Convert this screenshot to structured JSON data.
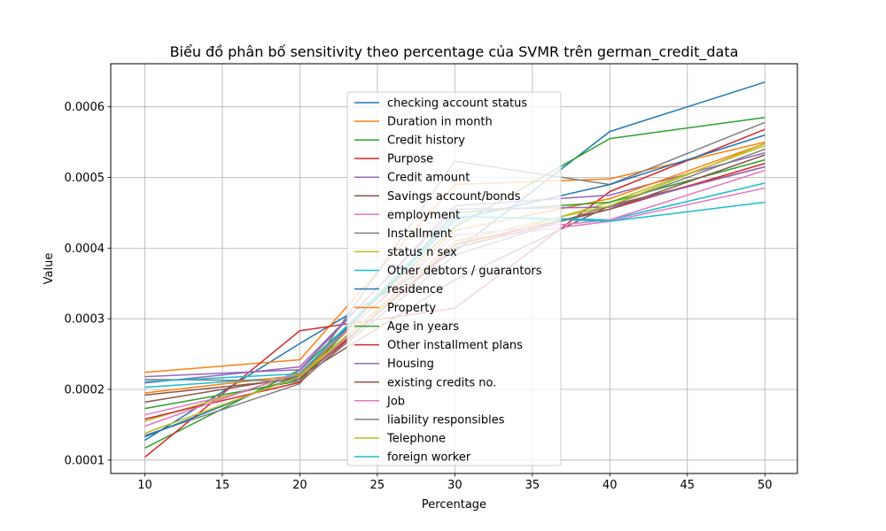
{
  "chart_data": {
    "type": "line",
    "title": "Biểu đồ phân bố sensitivity theo percentage của SVMR trên german_credit_data",
    "xlabel": "Percentage",
    "ylabel": "Value",
    "x": [
      10,
      20,
      30,
      40,
      50
    ],
    "x_ticks": [
      "10",
      "15",
      "20",
      "25",
      "30",
      "35",
      "40",
      "45",
      "50"
    ],
    "y_ticks": [
      "0.0001",
      "0.0002",
      "0.0003",
      "0.0004",
      "0.0005",
      "0.0006"
    ],
    "xlim": [
      7.8,
      52.1
    ],
    "ylim": [
      8.1e-05,
      0.000661
    ],
    "grid": true,
    "legend_position": "center",
    "series": [
      {
        "name": "checking account status",
        "color": "#1f77b4",
        "values": [
          0.000128,
          0.000265,
          0.000395,
          0.000565,
          0.000635
        ]
      },
      {
        "name": "Duration in month",
        "color": "#ff7f0e",
        "values": [
          0.000224,
          0.000242,
          0.00049,
          0.000498,
          0.00055
        ]
      },
      {
        "name": "Credit history",
        "color": "#2ca02c",
        "values": [
          0.000117,
          0.000228,
          0.00043,
          0.000555,
          0.000585
        ]
      },
      {
        "name": "Purpose",
        "color": "#d62728",
        "values": [
          0.000104,
          0.000283,
          0.000315,
          0.00048,
          0.000568
        ]
      },
      {
        "name": "Credit amount",
        "color": "#9467bd",
        "values": [
          0.000218,
          0.000228,
          0.00046,
          0.000475,
          0.000535
        ]
      },
      {
        "name": "Savings account/bonds",
        "color": "#8c564b",
        "values": [
          0.000182,
          0.000218,
          0.000355,
          0.00046,
          0.000515
        ]
      },
      {
        "name": "employment",
        "color": "#e377c2",
        "values": [
          0.000164,
          0.000215,
          0.00041,
          0.000438,
          0.000485
        ]
      },
      {
        "name": " Installment",
        "color": "#7f7f7f",
        "values": [
          0.000135,
          0.000208,
          0.000523,
          0.00049,
          0.000578
        ]
      },
      {
        "name": "status n sex",
        "color": "#bcbd22",
        "values": [
          0.000155,
          0.000222,
          0.0004,
          0.000465,
          0.000545
        ]
      },
      {
        "name": " Other debtors / guarantors",
        "color": "#17becf",
        "values": [
          0.000203,
          0.000218,
          0.000445,
          0.00044,
          0.000492
        ]
      },
      {
        "name": "residence",
        "color": "#1f77b4",
        "values": [
          0.000133,
          0.00022,
          0.00044,
          0.00049,
          0.00056
        ]
      },
      {
        "name": "Property",
        "color": "#ff7f0e",
        "values": [
          0.000195,
          0.00022,
          0.000425,
          0.00047,
          0.000548
        ]
      },
      {
        "name": "Age in years",
        "color": "#2ca02c",
        "values": [
          0.000173,
          0.000212,
          0.00045,
          0.000465,
          0.000525
        ]
      },
      {
        "name": "Other installment plans",
        "color": "#d62728",
        "values": [
          0.000158,
          0.00021,
          0.000405,
          0.000455,
          0.00052
        ]
      },
      {
        "name": "Housing",
        "color": "#9467bd",
        "values": [
          0.000209,
          0.000232,
          0.000455,
          0.000458,
          0.000515
        ]
      },
      {
        "name": "existing credits no.",
        "color": "#8c564b",
        "values": [
          0.000192,
          0.000215,
          0.0004,
          0.000455,
          0.000532
        ]
      },
      {
        "name": "Job",
        "color": "#e377c2",
        "values": [
          0.000148,
          0.000225,
          0.000418,
          0.00044,
          0.00051
        ]
      },
      {
        "name": "liability responsibles",
        "color": "#7f7f7f",
        "values": [
          0.000214,
          0.000212,
          0.00039,
          0.00046,
          0.00054
        ]
      },
      {
        "name": "Telephone",
        "color": "#bcbd22",
        "values": [
          0.000138,
          0.000218,
          0.00041,
          0.00046,
          0.000548
        ]
      },
      {
        "name": "foreign worker",
        "color": "#17becf",
        "values": [
          0.000211,
          0.000222,
          0.000445,
          0.000438,
          0.000465
        ]
      }
    ]
  }
}
